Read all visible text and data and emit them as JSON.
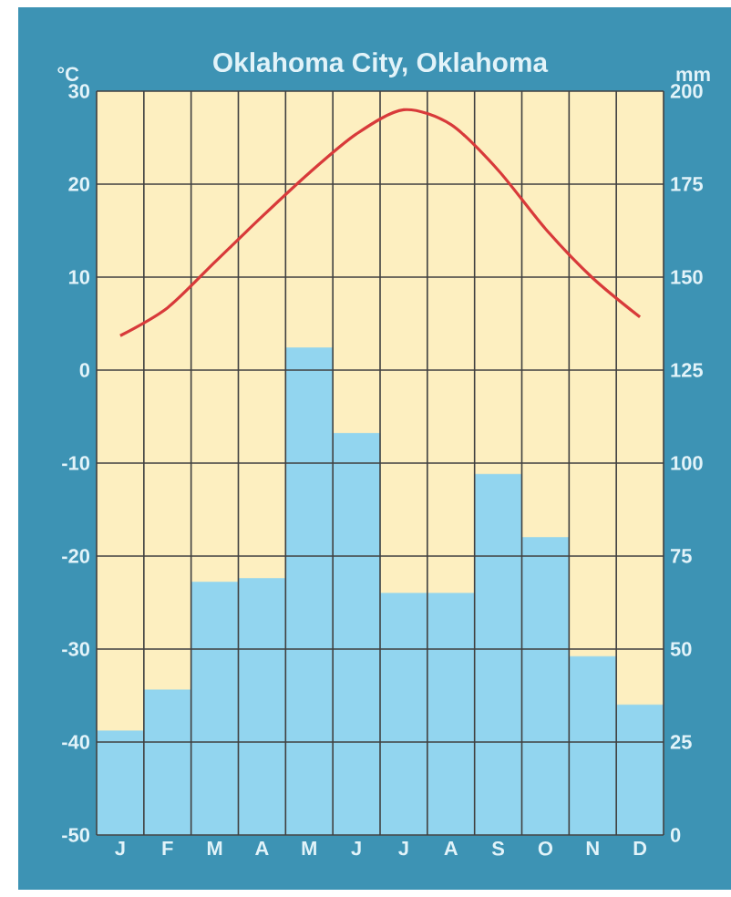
{
  "chart_data": {
    "type": "bar",
    "title": "Oklahoma City, Oklahoma",
    "ylabel": "°C",
    "y2label": "mm",
    "categories": [
      "J",
      "F",
      "M",
      "A",
      "M",
      "J",
      "J",
      "A",
      "S",
      "O",
      "N",
      "D"
    ],
    "series": [
      {
        "axis": "y2",
        "color": "#92d5ef",
        "values": [
          28,
          39,
          68,
          69,
          131,
          108,
          65,
          65,
          97,
          80,
          48,
          35
        ]
      },
      {
        "type": "line",
        "axis": "y",
        "color": "#d83a3a",
        "values": [
          3.7,
          6.7,
          11.6,
          16.5,
          21.2,
          25.4,
          28,
          26.4,
          21.5,
          15.2,
          9.9,
          5.7
        ]
      }
    ],
    "ylim": [
      -50,
      30
    ],
    "yticks": [
      -50,
      -40,
      -30,
      -20,
      -10,
      0,
      10,
      20,
      30
    ],
    "y2lim": [
      0,
      200
    ],
    "y2ticks": [
      0,
      25,
      50,
      75,
      100,
      125,
      150,
      175,
      200
    ],
    "grid": true
  }
}
